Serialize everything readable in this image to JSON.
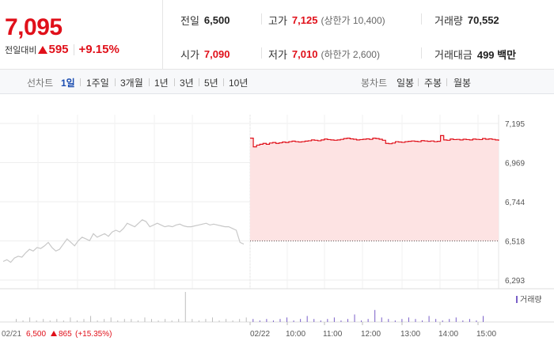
{
  "summary": {
    "price": "7,095",
    "change_label": "전일대비",
    "change_value": "595",
    "change_rate": "+9.15%",
    "prev_close_label": "전일",
    "prev_close": "6,500",
    "open_label": "시가",
    "open": "7,090",
    "high_label": "고가",
    "high": "7,125",
    "upper_limit": "(상한가 10,400)",
    "low_label": "저가",
    "low": "7,010",
    "lower_limit": "(하한가 2,600)",
    "volume_label": "거래량",
    "volume": "70,552",
    "value_label": "거래대금",
    "value": "499 백만"
  },
  "toolbar": {
    "line_chart_label": "선차트",
    "periods": [
      "1일",
      "1주일",
      "3개월",
      "1년",
      "3년",
      "5년",
      "10년"
    ],
    "active_period": "1일",
    "candle_chart_label": "봉차트",
    "candle_periods": [
      "일봉",
      "주봉",
      "월봉"
    ]
  },
  "colors": {
    "up": "#e0101a",
    "active": "#1a4cb0",
    "fill": "#fde3e3",
    "prev_line": "#c8c8c8"
  },
  "chart_data": {
    "type": "line",
    "y_ticks": [
      "7,195",
      "6,969",
      "6,744",
      "6,518",
      "6,293"
    ],
    "ylim": [
      6293,
      7195
    ],
    "reference_line": 6518,
    "x_ticks": [
      "02/22",
      "10:00",
      "11:00",
      "12:00",
      "13:00",
      "14:00",
      "15:00"
    ],
    "volume_legend": "거래량",
    "previous_day": {
      "label": "02/21",
      "close": "6,500",
      "change": "865",
      "change_rate": "(+15.35%)",
      "values": [
        6400,
        6410,
        6395,
        6420,
        6430,
        6425,
        6450,
        6470,
        6460,
        6480,
        6475,
        6490,
        6510,
        6480,
        6460,
        6470,
        6500,
        6530,
        6510,
        6490,
        6520,
        6540,
        6530,
        6520,
        6560,
        6540,
        6550,
        6560,
        6545,
        6570,
        6580,
        6570,
        6590,
        6620,
        6610,
        6600,
        6620,
        6640,
        6630,
        6600,
        6610,
        6620,
        6610,
        6600,
        6605,
        6600,
        6610,
        6615,
        6605,
        6600,
        6600,
        6605,
        6610,
        6615,
        6620,
        6610,
        6615,
        6610,
        6605,
        6600,
        6600,
        6590,
        6580,
        6510,
        6500
      ]
    },
    "series": [
      {
        "values": [
          7110,
          7060,
          7070,
          7075,
          7080,
          7075,
          7082,
          7085,
          7080,
          7083,
          7088,
          7085,
          7090,
          7093,
          7090,
          7088,
          7090,
          7093,
          7095,
          7100,
          7098,
          7095,
          7100,
          7105,
          7102,
          7100,
          7098,
          7100,
          7103,
          7108,
          7110,
          7106,
          7104,
          7100,
          7102,
          7104,
          7106,
          7103,
          7110,
          7108,
          7104,
          7098,
          7080,
          7078,
          7082,
          7090,
          7088,
          7086,
          7090,
          7092,
          7094,
          7092,
          7090,
          7096,
          7094,
          7092,
          7094,
          7090,
          7092,
          7125,
          7100,
          7098,
          7105,
          7102,
          7103,
          7100,
          7104,
          7102,
          7100,
          7105,
          7103,
          7102,
          7108,
          7104,
          7106,
          7103,
          7100,
          7095
        ]
      }
    ],
    "volume": [
      2,
      1,
      3,
      1,
      2,
      1,
      2,
      1,
      3,
      1,
      2,
      4,
      1,
      2,
      3,
      1,
      2,
      2,
      1,
      3,
      2,
      1,
      2,
      1,
      2,
      20,
      2,
      1,
      2,
      3,
      1,
      2,
      1,
      2,
      3,
      2,
      1,
      2,
      1,
      2,
      3,
      1,
      2,
      4,
      2,
      1,
      2,
      3,
      1,
      2,
      5,
      1,
      2,
      8,
      3,
      2,
      1,
      2,
      3,
      2,
      1,
      4,
      2,
      1,
      2,
      3,
      1,
      2,
      1,
      4
    ]
  }
}
